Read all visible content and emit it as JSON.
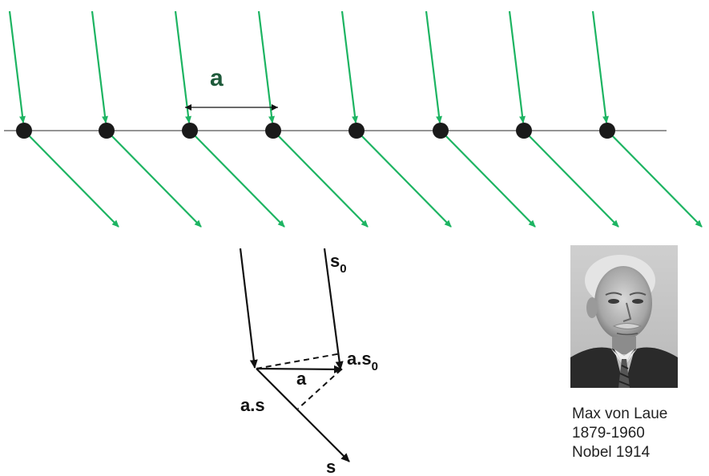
{
  "diagram": {
    "spacing_label": "a",
    "vectors": {
      "incident": "s",
      "incident_sub": "0",
      "scattered": "s",
      "path_incident_prefix": "a.s",
      "path_incident_sub": "0",
      "path_scattered": "a.s",
      "spacing_small": "a"
    },
    "colors": {
      "ray": "#1db462",
      "atom": "#1a1a1a",
      "line": "#555555",
      "vector": "#111111"
    }
  },
  "portrait": {
    "icon": "person-portrait-photo"
  },
  "caption": {
    "name": "Max von Laue",
    "years": "1879-1960",
    "award": "Nobel 1914"
  }
}
